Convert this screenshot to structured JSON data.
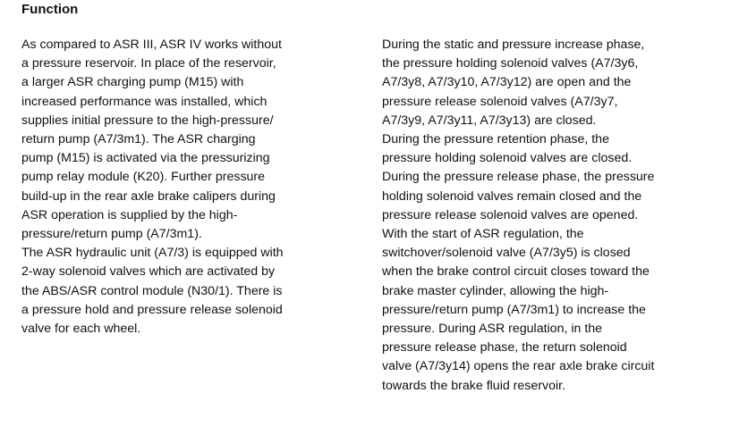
{
  "heading": "Function",
  "left_column": [
    "As compared to ASR III, ASR IV works without",
    "a pressure reservoir.  In place of the reservoir,",
    "a larger ASR charging pump (M15) with",
    "increased performance was installed, which",
    "supplies initial pressure to the high-pressure/",
    "return pump (A7/3m1).  The ASR charging",
    "pump (M15) is activated via the pressurizing",
    "pump relay module (K20).  Further pressure",
    "build-up in the rear axle brake calipers during",
    "ASR operation is supplied by the high-",
    "pressure/return pump (A7/3m1).",
    "The ASR hydraulic unit (A7/3) is equipped with",
    "2-way solenoid valves which are activated by",
    "the ABS/ASR control module (N30/1).  There is",
    "a pressure hold and pressure release solenoid",
    "valve for each wheel."
  ],
  "right_column": [
    "During the static and pressure increase phase,",
    "the pressure holding solenoid valves (A7/3y6,",
    "A7/3y8, A7/3y10, A7/3y12) are open and the",
    "pressure release solenoid valves (A7/3y7,",
    "A7/3y9, A7/3y11, A7/3y13) are closed.",
    "During the pressure retention phase, the",
    "pressure holding solenoid valves are closed.",
    "During the pressure release phase, the pressure",
    "holding solenoid valves remain closed and the",
    "pressure release solenoid valves are opened.",
    "With the start of ASR regulation, the",
    "switchover/solenoid valve (A7/3y5) is closed",
    "when the brake control circuit closes toward the",
    "brake master cylinder, allowing the high-",
    "pressure/return pump (A7/3m1) to increase the",
    "pressure.  During ASR regulation, in the",
    "pressure release phase, the return solenoid",
    "valve (A7/3y14) opens the rear axle brake circuit",
    "towards the brake fluid reservoir."
  ]
}
